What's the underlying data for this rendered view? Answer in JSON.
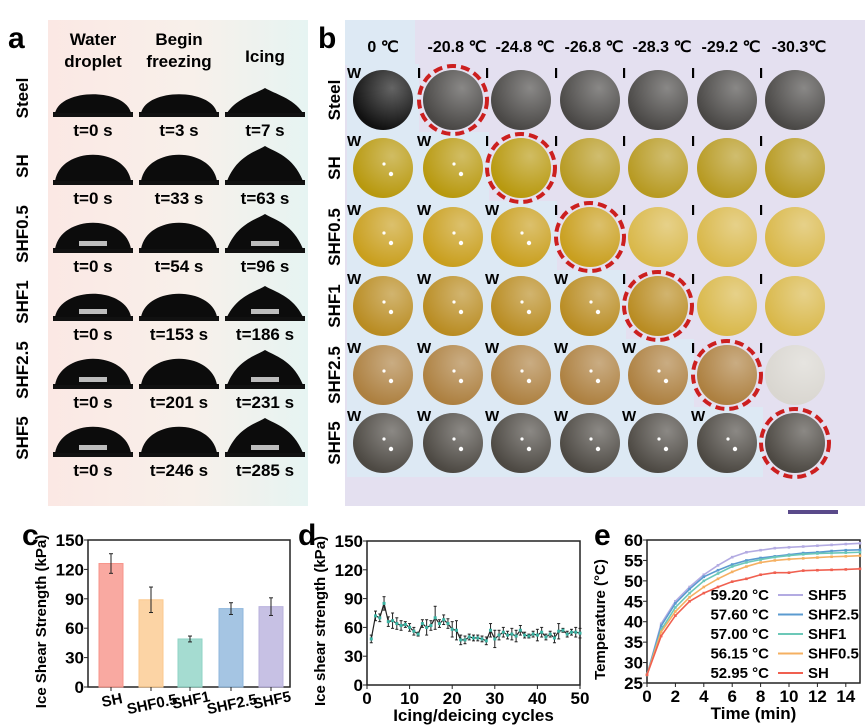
{
  "panel_labels": {
    "a": "a",
    "b": "b",
    "c": "c",
    "d": "d",
    "e": "e"
  },
  "panel_a": {
    "headers": [
      [
        "Water",
        "droplet"
      ],
      [
        "Begin",
        "freezing"
      ],
      [
        "Icing"
      ]
    ],
    "rows": [
      {
        "name": "Steel",
        "times": [
          "t=0 s",
          "t=3 s",
          "t=7 s"
        ]
      },
      {
        "name": "SH",
        "times": [
          "t=0 s",
          "t=33 s",
          "t=63 s"
        ]
      },
      {
        "name": "SHF0.5",
        "times": [
          "t=0 s",
          "t=54 s",
          "t=96 s"
        ]
      },
      {
        "name": "SHF1",
        "times": [
          "t=0 s",
          "t=153 s",
          "t=186 s"
        ]
      },
      {
        "name": "SHF2.5",
        "times": [
          "t=0 s",
          "t=201 s",
          "t=231 s"
        ]
      },
      {
        "name": "SHF5",
        "times": [
          "t=0 s",
          "t=246 s",
          "t=285 s"
        ]
      }
    ]
  },
  "panel_b": {
    "temperatures": [
      "0 ℃",
      "-20.8 ℃",
      "-24.8 ℃",
      "-26.8 ℃",
      "-28.3 ℃",
      "-29.2 ℃",
      "-30.3℃"
    ],
    "rows": [
      {
        "name": "Steel",
        "states": [
          "W",
          "I",
          "I",
          "I",
          "I",
          "I",
          "I"
        ],
        "freeze_col": 1,
        "color": "#4a4846"
      },
      {
        "name": "SH",
        "states": [
          "W",
          "W",
          "I",
          "I",
          "I",
          "I",
          "I"
        ],
        "freeze_col": 2,
        "color": "#b8990f"
      },
      {
        "name": "SHF0.5",
        "states": [
          "W",
          "W",
          "W",
          "I",
          "I",
          "I",
          "I"
        ],
        "freeze_col": 3,
        "color": "#c99f1e"
      },
      {
        "name": "SHF1",
        "states": [
          "W",
          "W",
          "W",
          "W",
          "I",
          "I",
          "I"
        ],
        "freeze_col": 4,
        "color": "#b98c22"
      },
      {
        "name": "SHF2.5",
        "states": [
          "W",
          "W",
          "W",
          "W",
          "W",
          "I",
          "I"
        ],
        "freeze_col": 5,
        "color": "#ad8040"
      },
      {
        "name": "SHF5",
        "states": [
          "W",
          "W",
          "W",
          "W",
          "W",
          "W",
          ""
        ],
        "freeze_col": 6,
        "color": "#4d4943"
      }
    ],
    "ring_color": "#cc1f1f",
    "water_bg": "#dde9f4",
    "ice_bg": "#e4e0f0"
  },
  "chart_data": [
    {
      "type": "bar",
      "categories": [
        "SH",
        "SHF0.5",
        "SHF1",
        "SHF2.5",
        "SHF5"
      ],
      "values": [
        126,
        89,
        49,
        80,
        82
      ],
      "errors": [
        10,
        13,
        3,
        6,
        9
      ],
      "colors": [
        "#f7948a",
        "#fbc98e",
        "#8fd3c5",
        "#8fb7dc",
        "#b9b1dd"
      ],
      "ylabel": "Ice Shear Strength (kPa)",
      "ylim": [
        0,
        150
      ],
      "yticks": [
        0,
        30,
        60,
        90,
        120,
        150
      ]
    },
    {
      "type": "line",
      "x": [
        1,
        2,
        3,
        4,
        5,
        6,
        7,
        8,
        9,
        10,
        11,
        12,
        13,
        14,
        15,
        16,
        17,
        18,
        19,
        20,
        21,
        22,
        23,
        24,
        25,
        26,
        27,
        28,
        29,
        30,
        31,
        32,
        33,
        34,
        35,
        36,
        37,
        38,
        39,
        40,
        41,
        42,
        43,
        44,
        45,
        46,
        47,
        48,
        49,
        50
      ],
      "values": [
        48,
        72,
        70,
        85,
        66,
        67,
        64,
        62,
        63,
        60,
        56,
        53,
        64,
        60,
        62,
        70,
        64,
        68,
        64,
        58,
        57,
        47,
        47,
        50,
        49,
        49,
        48,
        46,
        57,
        48,
        52,
        55,
        52,
        53,
        51,
        57,
        52,
        51,
        53,
        52,
        55,
        50,
        53,
        49,
        56,
        57,
        53,
        55,
        55,
        54
      ],
      "errors": [
        4,
        5,
        4,
        7,
        5,
        8,
        6,
        5,
        3,
        4,
        4,
        2,
        4,
        8,
        5,
        12,
        4,
        5,
        5,
        8,
        10,
        5,
        4,
        3,
        3,
        3,
        3,
        4,
        7,
        9,
        5,
        5,
        4,
        6,
        6,
        5,
        3,
        2,
        3,
        6,
        5,
        3,
        3,
        5,
        8,
        2,
        3,
        3,
        5,
        5
      ],
      "xlabel": "Icing/deicing cycles",
      "ylabel": "Ice shear strength (kPa)",
      "xlim": [
        0,
        50
      ],
      "ylim": [
        0,
        150
      ],
      "xticks": [
        0,
        10,
        20,
        30,
        40,
        50
      ],
      "yticks": [
        0,
        30,
        60,
        90,
        120,
        150
      ],
      "line_color": "#222222",
      "marker_color": "#3bb3a3"
    },
    {
      "type": "line",
      "x": [
        0,
        1,
        2,
        3,
        4,
        5,
        6,
        7,
        8,
        9,
        10,
        11,
        12,
        13,
        14,
        15
      ],
      "series": [
        {
          "name": "SHF5",
          "final_label": "59.20 °C",
          "color": "#b3abe2",
          "values": [
            27,
            39.5,
            45,
            48.5,
            51.5,
            53.8,
            55.8,
            57,
            57.5,
            58,
            58.2,
            58.4,
            58.6,
            58.8,
            59,
            59.2
          ]
        },
        {
          "name": "SHF2.5",
          "final_label": "57.60 °C",
          "color": "#5b9bd0",
          "values": [
            27,
            39,
            44.5,
            48,
            51,
            52.6,
            54,
            55,
            55.6,
            56,
            56.4,
            56.8,
            57,
            57.3,
            57.5,
            57.6
          ]
        },
        {
          "name": "SHF1",
          "final_label": "57.00 °C",
          "color": "#6cc8b8",
          "values": [
            27,
            38,
            43.5,
            47,
            50,
            51.8,
            53.5,
            54.5,
            55.2,
            55.8,
            56.2,
            56.5,
            56.7,
            56.8,
            56.9,
            57
          ]
        },
        {
          "name": "SHF0.5",
          "final_label": "56.15 °C",
          "color": "#f5b062",
          "values": [
            27,
            37.5,
            42.5,
            46,
            48.5,
            50.5,
            52.2,
            53.5,
            54.5,
            55,
            55.3,
            55.5,
            55.7,
            55.9,
            56,
            56.15
          ]
        },
        {
          "name": "SH",
          "final_label": "52.95 °C",
          "color": "#f06050",
          "values": [
            27,
            36.5,
            41.5,
            45,
            47,
            48.5,
            49.8,
            50.5,
            51.5,
            52,
            52,
            52.5,
            52.6,
            52.7,
            52.8,
            52.95
          ]
        }
      ],
      "xlabel": "Time (min)",
      "ylabel": "Temperature (°C)",
      "xlim": [
        0,
        15
      ],
      "ylim": [
        25,
        60
      ],
      "xticks": [
        0,
        2,
        4,
        6,
        8,
        10,
        12,
        14
      ],
      "yticks": [
        25,
        30,
        35,
        40,
        45,
        50,
        55,
        60
      ],
      "legend": "bottom-right"
    }
  ]
}
